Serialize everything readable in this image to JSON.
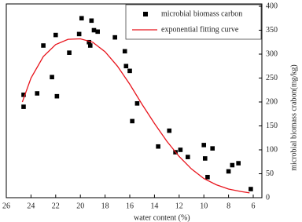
{
  "chart_data": {
    "type": "scatter",
    "xlabel": "water content (%)",
    "ylabel": "microbial biomass crabon(mg/kg)",
    "xlim": [
      26,
      5.3
    ],
    "xticks": [
      26,
      24,
      22,
      20,
      18,
      16,
      14,
      12,
      10,
      8,
      6
    ],
    "ylim": [
      0,
      400
    ],
    "yticks": [
      0,
      50,
      100,
      150,
      200,
      250,
      300,
      350,
      400
    ],
    "legend": "upper right",
    "series": [
      {
        "name": "microbial biomass carbon",
        "type": "scatter",
        "color": "#000000",
        "x": [
          24.6,
          24.6,
          23.5,
          23,
          22.3,
          22,
          21.9,
          20.9,
          20.1,
          19.9,
          19.3,
          19.2,
          19.1,
          18.9,
          18.6,
          17.2,
          16.4,
          16.3,
          16,
          15.8,
          15.4,
          13.7,
          12.8,
          12.3,
          11.9,
          11.3,
          10,
          9.9,
          9.7,
          9.3,
          8,
          7.7,
          7.2,
          6.2
        ],
        "y": [
          215,
          190,
          218,
          318,
          252,
          340,
          212,
          303,
          342,
          375,
          325,
          318,
          370,
          350,
          347,
          335,
          306,
          275,
          265,
          160,
          197,
          107,
          140,
          95,
          100,
          85,
          110,
          82,
          43,
          103,
          55,
          68,
          72,
          18
        ]
      },
      {
        "name": "exponential fitting curve",
        "type": "line",
        "color": "#e8141c",
        "x": [
          24.7,
          24,
          23,
          22,
          21,
          20,
          19,
          18,
          17,
          16,
          15,
          14,
          13,
          12,
          11,
          10,
          9,
          8,
          7,
          6.3
        ],
        "y": [
          200,
          250,
          295,
          320,
          331,
          332,
          325,
          305,
          275,
          237,
          195,
          155,
          118,
          86,
          60,
          40,
          27,
          18,
          13,
          10
        ]
      }
    ]
  }
}
